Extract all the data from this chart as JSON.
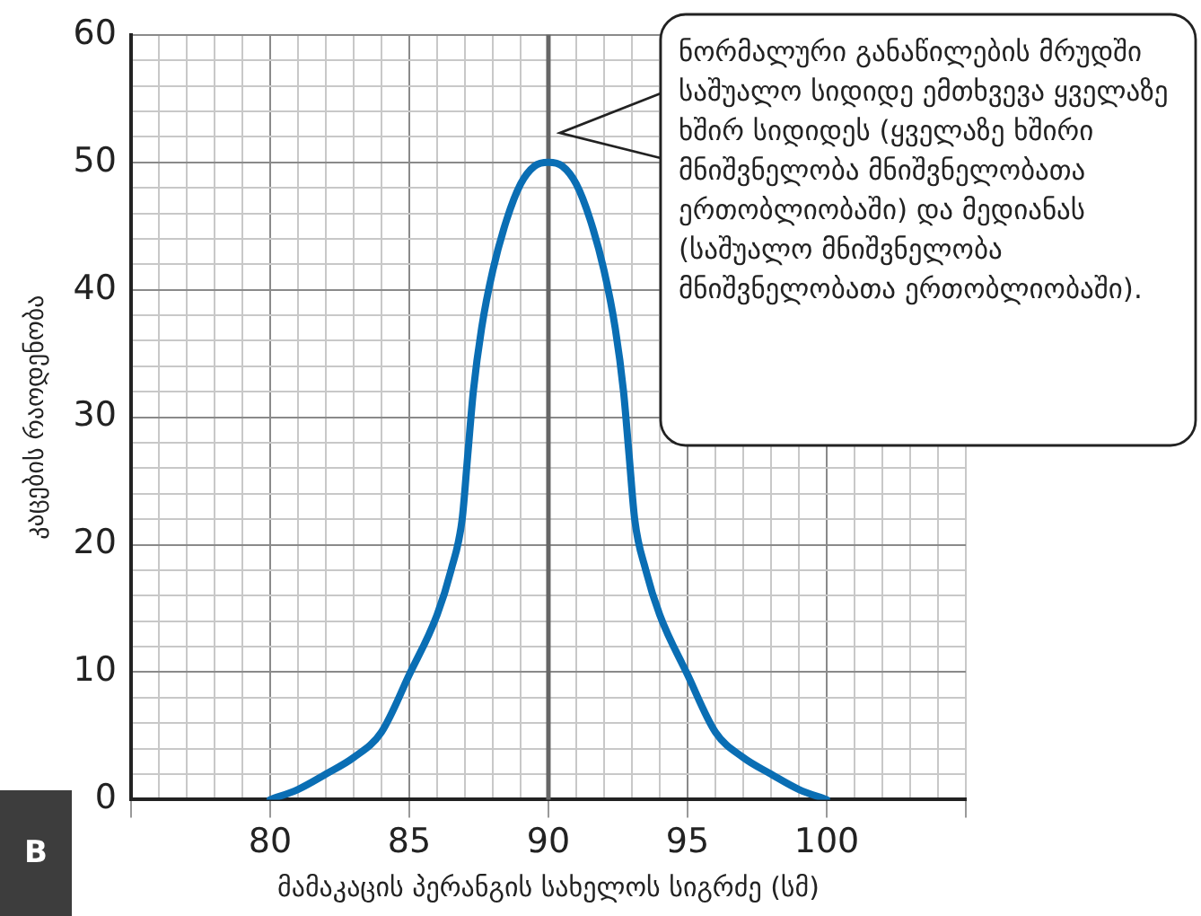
{
  "chart_data": {
    "type": "line",
    "xlabel": "მამაკაცის პერანგის სახელოს სიგრძე (სმ)",
    "ylabel": "კაცების რაოდენობა",
    "x": [
      80,
      81,
      82,
      83,
      84,
      85,
      86,
      86.5,
      86.9,
      87.1,
      87.3,
      87.6,
      88,
      88.5,
      89,
      89.5,
      90,
      90.5,
      91,
      91.5,
      92,
      92.4,
      92.7,
      92.9,
      93.1,
      93.5,
      94,
      95,
      96,
      97,
      98,
      99,
      100
    ],
    "series": [
      {
        "color": "#0a6eb4",
        "values": [
          0,
          0.8,
          2,
          3.3,
          5.3,
          9.8,
          14.5,
          18,
          22,
          27,
          32,
          37,
          41.5,
          45.5,
          48.3,
          49.7,
          50,
          49.7,
          48.3,
          45.5,
          41.5,
          37,
          32,
          27,
          22,
          18,
          14.5,
          9.8,
          5.3,
          3.3,
          2,
          0.8,
          0
        ]
      }
    ],
    "xlim": [
      75,
      105
    ],
    "ylim": [
      0,
      60
    ],
    "xticks": [
      {
        "value": 75,
        "label": null
      },
      {
        "value": 76,
        "label": null
      },
      {
        "value": 77,
        "label": null
      },
      {
        "value": 78,
        "label": null
      },
      {
        "value": 79,
        "label": null
      },
      80,
      {
        "value": 81,
        "label": null
      },
      {
        "value": 82,
        "label": null
      },
      {
        "value": 83,
        "label": null
      },
      {
        "value": 84,
        "label": null
      },
      85,
      {
        "value": 86,
        "label": null
      },
      {
        "value": 87,
        "label": null
      },
      {
        "value": 88,
        "label": null
      },
      {
        "value": 89,
        "label": null
      },
      90,
      {
        "value": 91,
        "label": null
      },
      {
        "value": 92,
        "label": null
      },
      {
        "value": 93,
        "label": null
      },
      {
        "value": 94,
        "label": null
      },
      95,
      {
        "value": 96,
        "label": null
      },
      {
        "value": 97,
        "label": null
      },
      {
        "value": 98,
        "label": null
      },
      {
        "value": 99,
        "label": null
      },
      100,
      {
        "value": 101,
        "label": null
      },
      {
        "value": 102,
        "label": null
      },
      {
        "value": 103,
        "label": null
      },
      {
        "value": 104,
        "label": null
      },
      {
        "value": 105,
        "label": null
      }
    ],
    "yticks": [
      0,
      {
        "value": 2,
        "label": null
      },
      {
        "value": 4,
        "label": null
      },
      {
        "value": 6,
        "label": null
      },
      {
        "value": 8,
        "label": null
      },
      10,
      {
        "value": 12,
        "label": null
      },
      {
        "value": 14,
        "label": null
      },
      {
        "value": 16,
        "label": null
      },
      {
        "value": 18,
        "label": null
      },
      20,
      {
        "value": 22,
        "label": null
      },
      {
        "value": 24,
        "label": null
      },
      {
        "value": 26,
        "label": null
      },
      {
        "value": 28,
        "label": null
      },
      30,
      {
        "value": 32,
        "label": null
      },
      {
        "value": 34,
        "label": null
      },
      {
        "value": 36,
        "label": null
      },
      {
        "value": 38,
        "label": null
      },
      40,
      {
        "value": 42,
        "label": null
      },
      {
        "value": 44,
        "label": null
      },
      {
        "value": 46,
        "label": null
      },
      {
        "value": 48,
        "label": null
      },
      50,
      {
        "value": 52,
        "label": null
      },
      {
        "value": 54,
        "label": null
      },
      {
        "value": 56,
        "label": null
      },
      {
        "value": 58,
        "label": null
      },
      60
    ],
    "grid": true,
    "legend": false,
    "marker": "none",
    "line_style": "solid",
    "ref_lines": [
      {
        "axis": "x",
        "value": 90,
        "color": "#666666"
      }
    ],
    "annotations": [
      "ნორმალური განაწილების მრუდში საშუალო სიდიდე ემთხვევა ყველაზე ხშირ სიდიდეს (ყველაზე ხშირი მნიშვნელობა მნიშვნელობათა ერთობლიობაში) და მედიანას (საშუალო მნიშვნელობა მნიშვნელობათა ერთობლიობაში).",
      "B"
    ]
  }
}
